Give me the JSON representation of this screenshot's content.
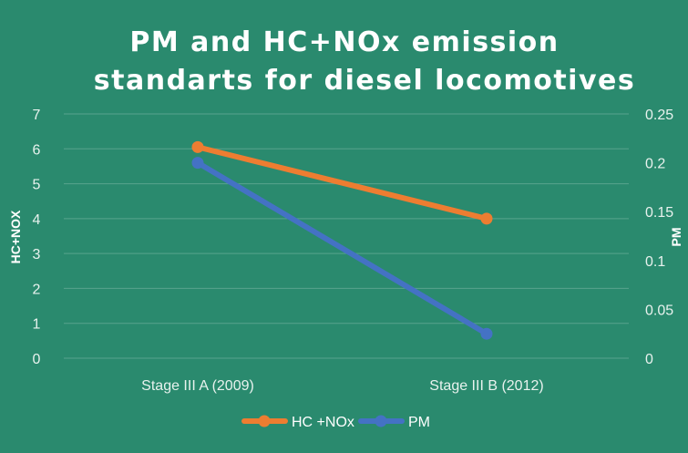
{
  "chart_data": {
    "type": "line",
    "title_lines": [
      "PM and HC+NOx emission",
      "standarts for diesel locomotives"
    ],
    "categories": [
      "Stage III A (2009)",
      "Stage III B (2012)"
    ],
    "series": [
      {
        "name": "HC +NOx",
        "axis": "left",
        "values": [
          6.05,
          4.0
        ],
        "color": "#ed7d31"
      },
      {
        "name": "PM",
        "axis": "right",
        "values": [
          0.2,
          0.025
        ],
        "color": "#4472c4"
      }
    ],
    "y_left": {
      "label": "HC+NOX",
      "range": [
        0,
        7
      ],
      "ticks": [
        "0",
        "1",
        "2",
        "3",
        "4",
        "5",
        "6",
        "7"
      ]
    },
    "y_right": {
      "label": "PM",
      "range": [
        0,
        0.25
      ],
      "ticks": [
        "0",
        "0.05",
        "0.1",
        "0.15",
        "0.2",
        "0.25"
      ]
    },
    "grid": true,
    "legend_position": "bottom",
    "background": "#2a8a6e"
  }
}
